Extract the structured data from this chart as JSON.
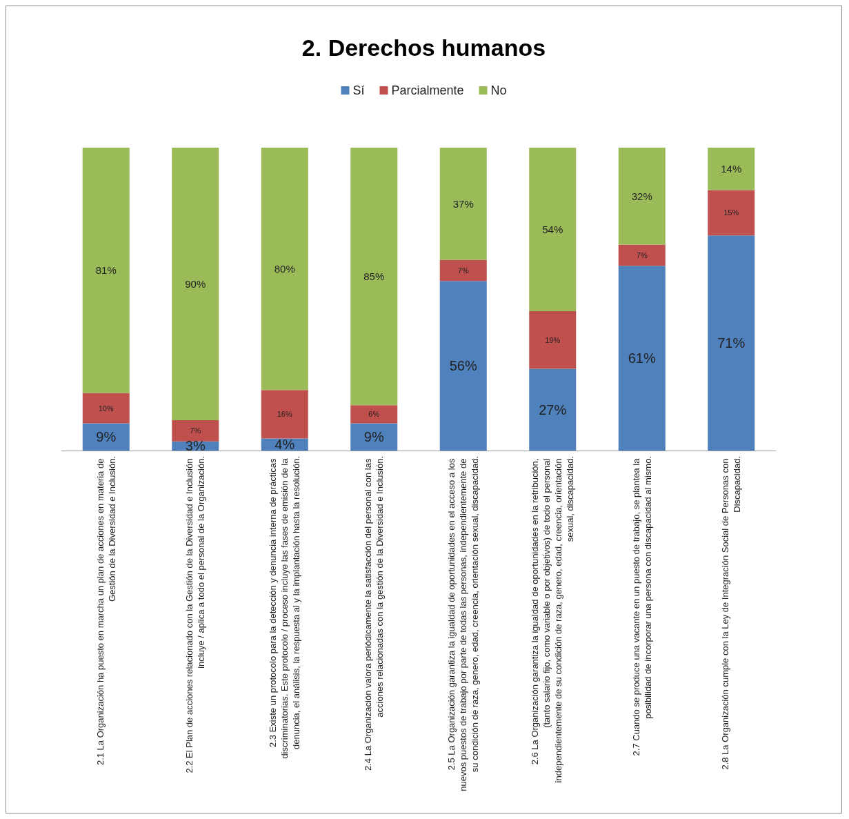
{
  "chart_data": {
    "type": "bar",
    "title": "2. Derechos humanos",
    "stacked": true,
    "legend": "top",
    "categories": [
      "2.1 La Organización ha puesto en marcha un plan de acciones en materia de Gestión de la Diversidad e Inclusión.",
      "2.2 El Plan de acciones relacionado con la Gestión de la Diversidad e Inclusión incluye / aplica a todo el personal de la Organización.",
      "2.3 Existe un protocolo para la detección y denuncia interna de prácticas discriminatorias. Este protocolo / proceso incluye las fases de emisión de la denuncia, el análisis, la respuesta al y la implantación hasta la resolución.",
      "2.4 La Organización valora periódicamente la satisfacción del personal con las acciones relacionadas con la gestión de la Diversidad e Inclusión.",
      "2.5 La Organización garantiza la igualdad de oportunidades en el acceso a los nuevos puestos de trabajo por parte de todas las personas, independientemente de su condición de raza, genero, edad, creencia, orientación sexual, discapacidad.",
      "2.6 La Organización garantiza la igualdad de oportunidades en la retribución, (tanto salario fijo, como variable o por objetivos) de todo el personal independientemente de su condición de raza, genero, edad, creencia, orientación sexual, discapacidad.",
      "2.7 Cuando se produce una vacante en un puesto de trabajo, se plantea la posibilidad de incorporar una persona con discapacidad al mismo.",
      "2.8 La Organización cumple con la Ley de Integración Social de Personas con Discapacidad."
    ],
    "series": [
      {
        "name": "Sí",
        "color": "#4f81bd",
        "values": [
          9,
          3,
          4,
          9,
          56,
          27,
          61,
          71
        ],
        "value_labels": [
          "9%",
          "3%",
          "4%",
          "9%",
          "56%",
          "27%",
          "61%",
          "71%"
        ]
      },
      {
        "name": "Parcialmente",
        "color": "#c0504d",
        "values": [
          10,
          7,
          16,
          6,
          7,
          19,
          7,
          15
        ],
        "value_labels": [
          "10%",
          "7%",
          "16%",
          "6%",
          "7%",
          "19%",
          "7%",
          "15%"
        ]
      },
      {
        "name": "No",
        "color": "#9bbb59",
        "values": [
          81,
          90,
          80,
          85,
          37,
          54,
          32,
          14
        ],
        "value_labels": [
          "81%",
          "90%",
          "80%",
          "85%",
          "37%",
          "54%",
          "32%",
          "14%"
        ]
      }
    ]
  }
}
